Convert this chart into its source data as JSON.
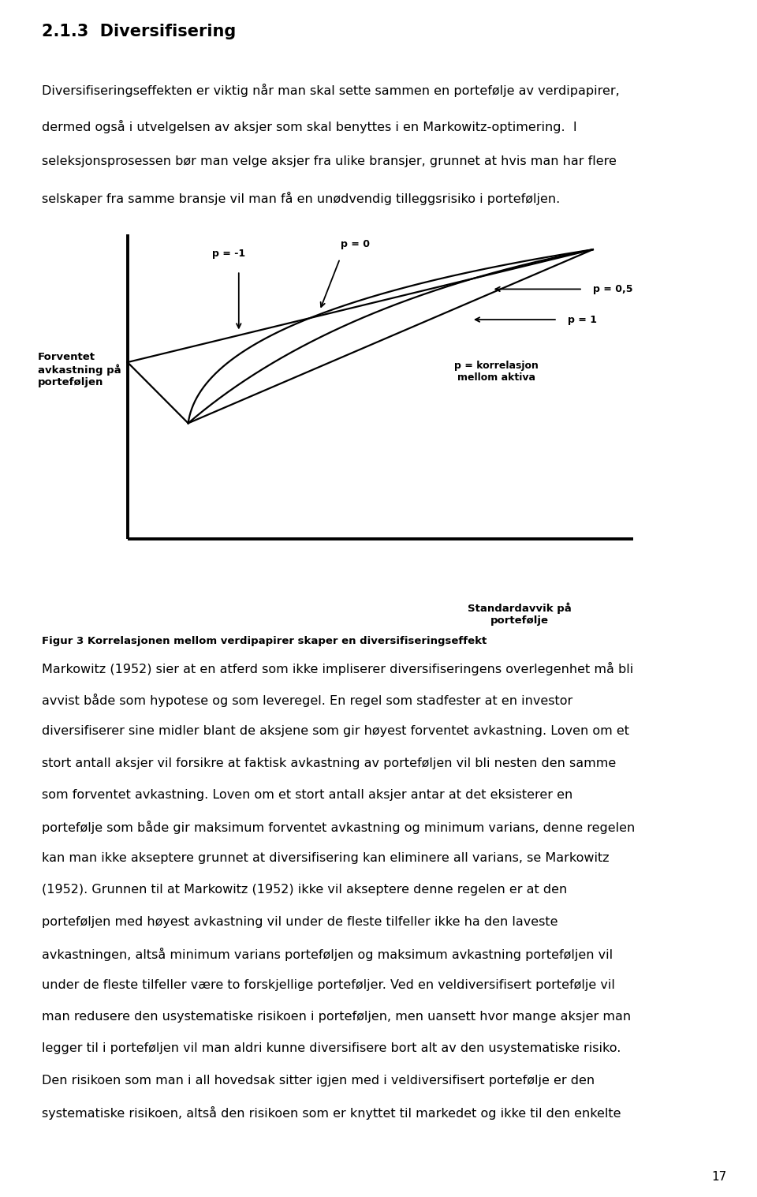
{
  "title_section": "2.1.3  Diversifisering",
  "para1_lines": [
    "Diversifiseringseffekten er viktig når man skal sette sammen en portefølje av verdipapirer,",
    "dermed også i utvelgelsen av aksjer som skal benyttes i en Markowitz-optimering.  I",
    "seleksjonsprosessen bør man velge aksjer fra ulike bransjer, grunnet at hvis man har flere",
    "selskaper fra samme bransje vil man få en unødvendig tilleggsrisiko i porteføljen."
  ],
  "ylabel": "Forventet\navkastning på\nporteføljen",
  "xlabel_line1": "Standardavvik på",
  "xlabel_line2": "portefølje",
  "fig_caption": "Figur 3 Korrelasjonen mellom verdipapirer skaper en diversifiseringseffekt",
  "label_rho_neg1": "p = -1",
  "label_rho_0": "p = 0",
  "label_rho_05": "p = 0,5",
  "label_rho_1": "p = 1",
  "label_rho_def_line1": "p = korrelasjon",
  "label_rho_def_line2": "mellom aktiva",
  "para2_lines": [
    "Markowitz (1952) sier at en atferd som ikke impliserer diversifiseringens overlegenhet må bli",
    "avvist både som hypotese og som leveregel. En regel som stadfester at en investor",
    "diversifiserer sine midler blant de aksjene som gir høyest forventet avkastning. Loven om et",
    "stort antall aksjer vil forsikre at faktisk avkastning av porteføljen vil bli nesten den samme",
    "som forventet avkastning. Loven om et stort antall aksjer antar at det eksisterer en",
    "portefølje som både gir maksimum forventet avkastning og minimum varians, denne regelen",
    "kan man ikke akseptere grunnet at diversifisering kan eliminere all varians, se Markowitz",
    "(1952). Grunnen til at Markowitz (1952) ikke vil akseptere denne regelen er at den",
    "porteføljen med høyest avkastning vil under de fleste tilfeller ikke ha den laveste",
    "avkastningen, altså minimum varians porteføljen og maksimum avkastning porteføljen vil",
    "under de fleste tilfeller være to forskjellige porteføljer. Ved en veldiversifisert portefølje vil",
    "man redusere den usystematiske risikoen i porteføljen, men uansett hvor mange aksjer man",
    "legger til i porteføljen vil man aldri kunne diversifisere bort alt av den usystematiske risiko.",
    "Den risikoen som man i all hovedsak sitter igjen med i veldiversifisert portefølje er den",
    "systematiske risikoen, altså den risikoen som er knyttet til markedet og ikke til den enkelte"
  ],
  "page_number": "17",
  "bg_color": "#ffffff",
  "text_color": "#000000"
}
